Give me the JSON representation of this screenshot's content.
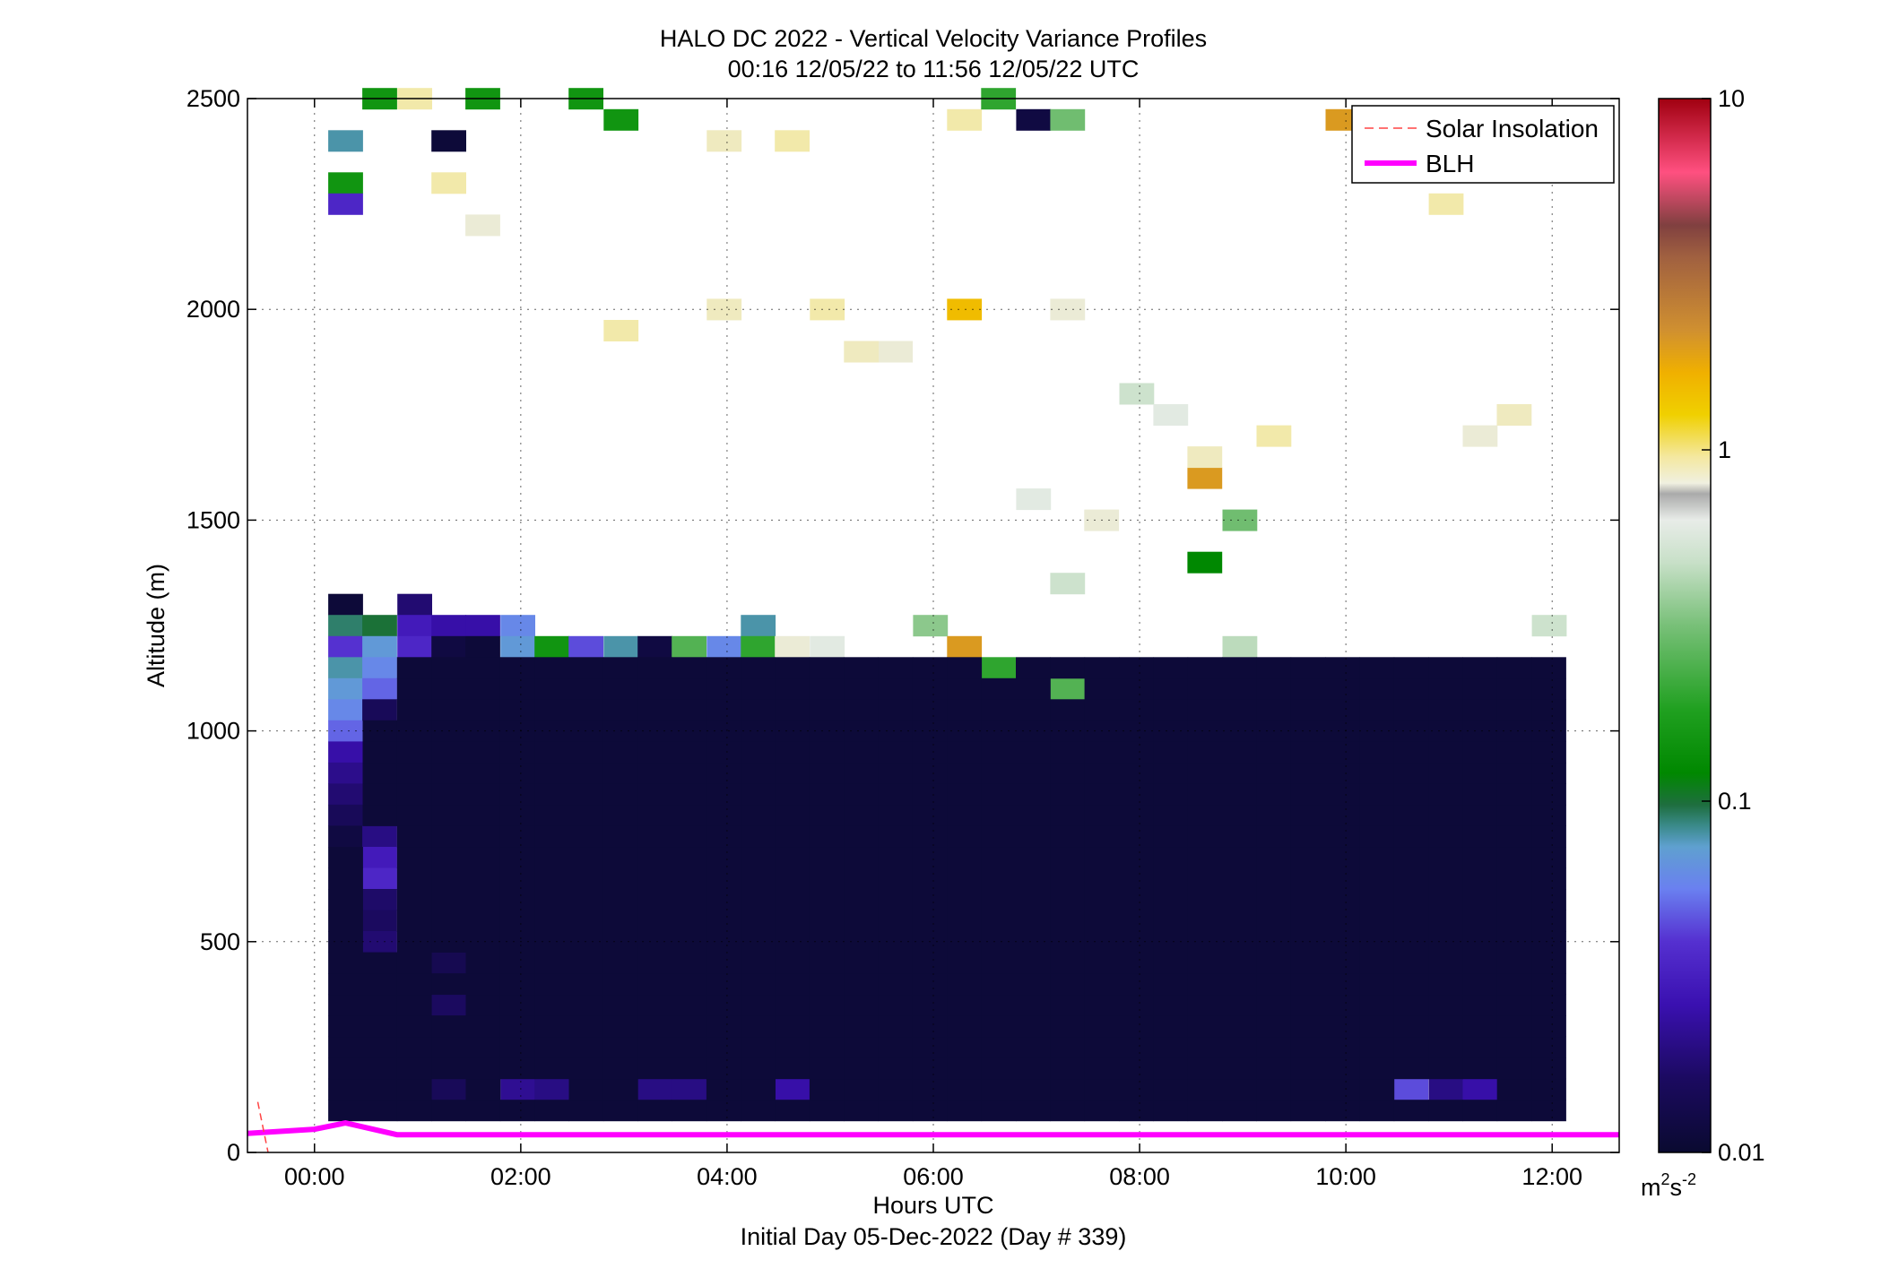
{
  "chart_data": {
    "type": "heatmap",
    "title": "HALO DC 2022 - Vertical Velocity Variance Profiles",
    "subtitle": "00:16 12/05/22 to 11:56 12/05/22  UTC",
    "xlabel": "Hours UTC",
    "xlabel2": "Initial Day 05-Dec-2022 (Day # 339)",
    "ylabel": "Altitude (m)",
    "xlim": [
      -0.65,
      12.65
    ],
    "ylim": [
      0,
      2500
    ],
    "x_ticks": [
      0,
      2,
      4,
      6,
      8,
      10,
      12
    ],
    "x_tick_labels": [
      "00:00",
      "02:00",
      "04:00",
      "06:00",
      "08:00",
      "10:00",
      "12:00"
    ],
    "y_ticks": [
      0,
      500,
      1000,
      1500,
      2000,
      2500
    ],
    "y_tick_labels": [
      "0",
      "500",
      "1000",
      "1500",
      "2000",
      "2500"
    ],
    "grid": true,
    "legend": {
      "position": "top-right",
      "entries": [
        "Solar Insolation",
        "BLH"
      ]
    },
    "colorbar": {
      "scale": "log",
      "range": [
        0.01,
        10
      ],
      "tick_labels": [
        "10",
        "1",
        "0.1",
        "0.01"
      ],
      "unit_base": "m",
      "unit_exp": "2",
      "unit_s": "s",
      "unit_sexp": "-2"
    },
    "cells": {
      "time_step_h": 0.3333,
      "alt_step_m": 50,
      "alt_min_m": 100,
      "alt_max_m": 1150,
      "time_min_h": 0.3,
      "time_max_h": 12.0,
      "background_variance": 0.011
    },
    "sparse_cells": [
      [
        0.3,
        1300,
        0.011
      ],
      [
        0.3,
        1250,
        0.09
      ],
      [
        0.3,
        1200,
        0.04
      ],
      [
        0.3,
        1150,
        0.08
      ],
      [
        0.3,
        1100,
        0.07
      ],
      [
        0.3,
        1050,
        0.06
      ],
      [
        0.3,
        1000,
        0.05
      ],
      [
        0.3,
        950,
        0.025
      ],
      [
        0.3,
        900,
        0.021
      ],
      [
        0.3,
        850,
        0.018
      ],
      [
        0.3,
        800,
        0.015
      ],
      [
        0.3,
        750,
        0.012
      ],
      [
        0.63,
        1250,
        0.1
      ],
      [
        0.63,
        1200,
        0.07
      ],
      [
        0.63,
        1150,
        0.06
      ],
      [
        0.63,
        1100,
        0.05
      ],
      [
        0.63,
        1050,
        0.015
      ],
      [
        0.63,
        750,
        0.02
      ],
      [
        0.63,
        700,
        0.03
      ],
      [
        0.63,
        650,
        0.035
      ],
      [
        0.63,
        600,
        0.017
      ],
      [
        0.63,
        550,
        0.016
      ],
      [
        0.63,
        500,
        0.018
      ],
      [
        0.97,
        1300,
        0.018
      ],
      [
        0.97,
        1250,
        0.03
      ],
      [
        0.97,
        1200,
        0.035
      ],
      [
        1.3,
        1250,
        0.025
      ],
      [
        1.3,
        1200,
        0.012
      ],
      [
        1.3,
        150,
        0.015
      ],
      [
        1.3,
        450,
        0.014
      ],
      [
        1.3,
        350,
        0.016
      ],
      [
        1.63,
        1250,
        0.025
      ],
      [
        1.63,
        1200,
        0.011
      ],
      [
        1.97,
        1250,
        0.06
      ],
      [
        1.97,
        1200,
        0.07
      ],
      [
        2.3,
        1200,
        0.15
      ],
      [
        2.63,
        1200,
        0.045
      ],
      [
        2.97,
        1200,
        0.08
      ],
      [
        3.3,
        1200,
        0.012
      ],
      [
        3.63,
        1200,
        0.25
      ],
      [
        3.97,
        1200,
        0.06
      ],
      [
        4.3,
        1250,
        0.08
      ],
      [
        4.3,
        1200,
        0.2
      ],
      [
        4.63,
        1200,
        0.7
      ],
      [
        4.97,
        1200,
        0.6
      ],
      [
        1.97,
        150,
        0.022
      ],
      [
        2.3,
        150,
        0.02
      ],
      [
        3.3,
        150,
        0.02
      ],
      [
        3.63,
        150,
        0.02
      ],
      [
        4.63,
        150,
        0.025
      ],
      [
        10.63,
        150,
        0.045
      ],
      [
        10.97,
        150,
        0.02
      ],
      [
        11.3,
        150,
        0.025
      ],
      [
        0.3,
        2400,
        0.08
      ],
      [
        0.63,
        2500,
        0.15
      ],
      [
        0.97,
        2500,
        0.9
      ],
      [
        1.63,
        2500,
        0.15
      ],
      [
        0.3,
        2300,
        0.15
      ],
      [
        0.3,
        2250,
        0.035
      ],
      [
        1.3,
        2400,
        0.011
      ],
      [
        1.3,
        2300,
        0.9
      ],
      [
        1.63,
        2200,
        0.7
      ],
      [
        2.63,
        2500,
        0.15
      ],
      [
        2.97,
        2450,
        0.15
      ],
      [
        3.97,
        2400,
        0.8
      ],
      [
        4.63,
        2400,
        0.9
      ],
      [
        6.3,
        2450,
        0.9
      ],
      [
        6.63,
        2500,
        0.2
      ],
      [
        6.97,
        2450,
        0.012
      ],
      [
        7.3,
        2450,
        0.3
      ],
      [
        9.97,
        2450,
        2.0
      ],
      [
        4.97,
        2000,
        0.9
      ],
      [
        6.3,
        2000,
        1.5
      ],
      [
        5.63,
        1900,
        0.7
      ],
      [
        7.3,
        2000,
        0.7
      ],
      [
        7.97,
        1800,
        0.5
      ],
      [
        8.3,
        1750,
        0.6
      ],
      [
        8.63,
        1600,
        2.0
      ],
      [
        8.63,
        1650,
        0.8
      ],
      [
        7.63,
        1500,
        0.7
      ],
      [
        8.97,
        1500,
        0.3
      ],
      [
        11.3,
        1700,
        0.7
      ],
      [
        11.63,
        1750,
        0.8
      ],
      [
        11.97,
        1250,
        0.5
      ],
      [
        8.97,
        1200,
        0.45
      ],
      [
        6.97,
        1550,
        0.6
      ],
      [
        7.3,
        1350,
        0.5
      ],
      [
        5.97,
        1250,
        0.35
      ],
      [
        6.63,
        1150,
        0.2
      ],
      [
        7.3,
        1100,
        0.25
      ],
      [
        6.3,
        1200,
        2.0
      ],
      [
        8.63,
        1400,
        0.12
      ],
      [
        9.3,
        1700,
        0.9
      ],
      [
        10.97,
        2250,
        0.9
      ],
      [
        2.97,
        1950,
        0.9
      ],
      [
        3.97,
        2000,
        0.8
      ],
      [
        5.3,
        1900,
        0.8
      ]
    ],
    "blh_path": [
      [
        -0.65,
        45
      ],
      [
        0.0,
        55
      ],
      [
        0.3,
        70
      ],
      [
        0.8,
        42
      ],
      [
        12.65,
        42
      ]
    ],
    "solar_insolation": [
      [
        -0.55,
        120
      ],
      [
        -0.45,
        0
      ]
    ]
  }
}
